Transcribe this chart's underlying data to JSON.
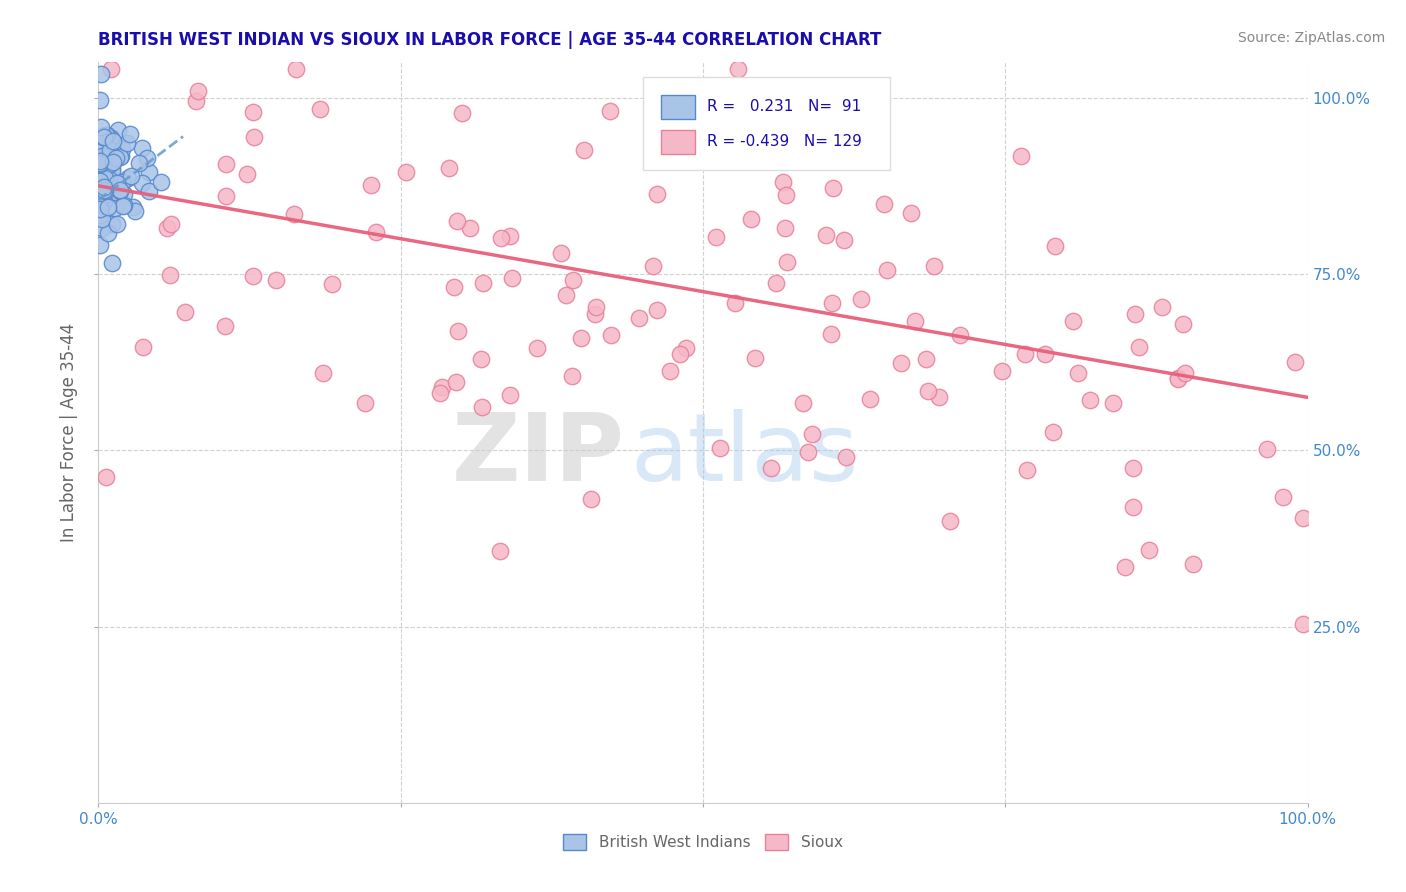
{
  "title": "BRITISH WEST INDIAN VS SIOUX IN LABOR FORCE | AGE 35-44 CORRELATION CHART",
  "source": "Source: ZipAtlas.com",
  "ylabel": "In Labor Force | Age 35-44",
  "xlim": [
    0.0,
    1.0
  ],
  "ylim": [
    0.0,
    1.05
  ],
  "x_ticks": [
    0.0,
    0.25,
    0.5,
    0.75,
    1.0
  ],
  "x_tick_labels": [
    "0.0%",
    "",
    "",
    "",
    "100.0%"
  ],
  "y_ticks": [
    0.25,
    0.5,
    0.75,
    1.0
  ],
  "y_tick_labels": [
    "25.0%",
    "50.0%",
    "75.0%",
    "100.0%"
  ],
  "bwi_R": 0.231,
  "bwi_N": 91,
  "sioux_R": -0.439,
  "sioux_N": 129,
  "bwi_color": "#aac4e8",
  "sioux_color": "#f5b8c8",
  "bwi_edge_color": "#5588cc",
  "sioux_edge_color": "#e8809a",
  "trend_bwi_color": "#6699cc",
  "trend_sioux_color": "#e8607a",
  "watermark_zip": "ZIP",
  "watermark_atlas": "atlas",
  "legend_label_bwi": "British West Indians",
  "legend_label_sioux": "Sioux",
  "title_color": "#1a0dab",
  "axis_label_color": "#666666",
  "tick_label_color": "#4488cc",
  "source_color": "#888888",
  "background_color": "#ffffff",
  "grid_color": "#cccccc",
  "sioux_trend_start_y": 0.875,
  "sioux_trend_end_y": 0.575,
  "bwi_trend_start_x": 0.0,
  "bwi_trend_end_x": 0.06
}
